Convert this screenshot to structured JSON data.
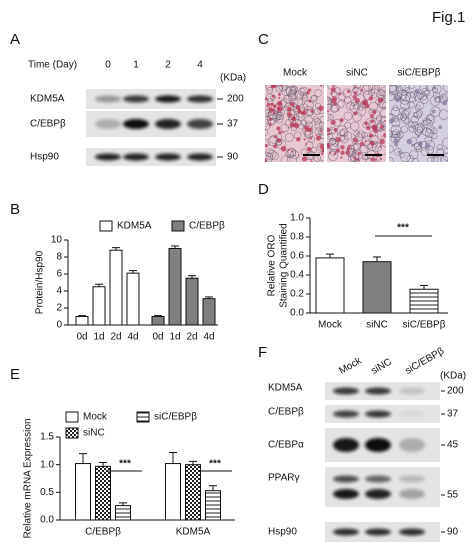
{
  "figure_label": "Fig.1",
  "panel_labels": [
    "A",
    "B",
    "C",
    "D",
    "E",
    "F"
  ],
  "blot_A": {
    "axis_label": "Time (Day)",
    "lanes": [
      "0",
      "1",
      "2",
      "4"
    ],
    "unit": "(KDa)",
    "rows": [
      {
        "label": "KDM5A",
        "marker": "200"
      },
      {
        "label": "C/EBPβ",
        "marker": "37"
      },
      {
        "label": "Hsp90",
        "marker": "90"
      }
    ]
  },
  "images_C": {
    "labels": [
      "Mock",
      "siNC",
      "siC/EBPβ"
    ]
  },
  "blot_F": {
    "lanes": [
      "Mock",
      "siNC",
      "siC/EBPβ"
    ],
    "unit": "(KDa)",
    "rows": [
      {
        "label": "KDM5A",
        "marker": "200"
      },
      {
        "label": "C/EBPβ",
        "marker": "37"
      },
      {
        "label": "C/EBPα",
        "marker": "45"
      },
      {
        "label": "PPARγ",
        "marker": "55"
      },
      {
        "label": "Hsp90",
        "marker": "90"
      }
    ]
  },
  "chart_data": [
    {
      "type": "bar",
      "ylabel": [
        "Protein/Hsp90"
      ],
      "categories": [
        "0d",
        "1d",
        "2d",
        "4d",
        "0d",
        "1d",
        "2d",
        "4d"
      ],
      "series": [
        {
          "name": "KDM5A",
          "color": "#ffffff",
          "values": [
            1,
            4.5,
            8.8,
            6.1,
            null,
            null,
            null,
            null
          ],
          "errors": [
            0.1,
            0.3,
            0.3,
            0.3,
            null,
            null,
            null,
            null
          ]
        },
        {
          "name": "C/EBPβ",
          "color": "#808080",
          "values": [
            null,
            null,
            null,
            null,
            1,
            9,
            5.5,
            3.1
          ],
          "errors": [
            null,
            null,
            null,
            null,
            0.1,
            0.3,
            0.3,
            0.2
          ]
        }
      ],
      "ylim": [
        0,
        10
      ],
      "yticks": [
        0,
        2,
        4,
        6,
        8,
        10
      ]
    },
    {
      "type": "bar",
      "ylabel": [
        "Relative ORO",
        "Staining Quantified"
      ],
      "categories": [
        "Mock",
        "siNC",
        "siC/EBPβ"
      ],
      "series": [
        {
          "colors": [
            "#ffffff",
            "#808080",
            "#ffffff"
          ],
          "patterns": [
            "none",
            "none",
            "hlines"
          ],
          "values": [
            0.58,
            0.54,
            0.25
          ],
          "errors": [
            0.04,
            0.05,
            0.04
          ]
        }
      ],
      "ylim": [
        0,
        1
      ],
      "yticks": [
        {
          "value": 0,
          "label": "0.0"
        },
        0.2,
        0.4,
        0.6,
        0.8,
        {
          "value": 1,
          "label": "1.0"
        }
      ],
      "annotations": [
        "***"
      ]
    },
    {
      "type": "bar",
      "ylabel": [
        "Relative mRNA Expression"
      ],
      "categories": [
        "C/EBPβ",
        "KDM5A"
      ],
      "series": [
        {
          "name": "Mock",
          "color": "#ffffff",
          "pattern": "none",
          "values": [
            1.02,
            1.02
          ],
          "errors": [
            0.18,
            0.2
          ]
        },
        {
          "name": "siNC",
          "color": "#ffffff",
          "pattern": "checker",
          "values": [
            0.97,
            1.0
          ],
          "errors": [
            0.07,
            0.06
          ]
        },
        {
          "name": "siC/EBPβ",
          "color": "#ffffff",
          "pattern": "hlines",
          "values": [
            0.26,
            0.53
          ],
          "errors": [
            0.05,
            0.09
          ]
        }
      ],
      "ylim": [
        0,
        1.5
      ],
      "yticks": [
        {
          "value": 0,
          "label": "0.0"
        },
        0.5,
        {
          "value": 1,
          "label": "1.0"
        },
        1.5
      ],
      "annotations": [
        "***",
        "***"
      ]
    }
  ]
}
